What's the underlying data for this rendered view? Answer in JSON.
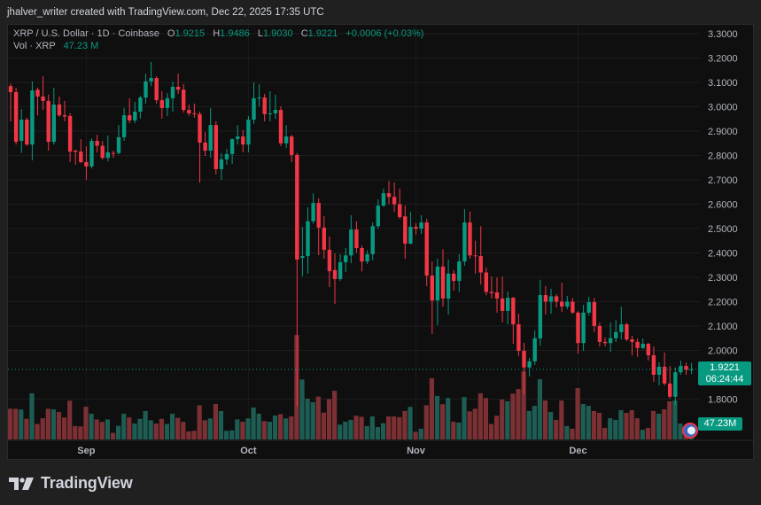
{
  "header": {
    "credit": "jhalver_writer created with TradingView.com, Dec 22, 2025 17:35 UTC"
  },
  "legend": {
    "symbol": "XRP / U.S. Dollar · 1D · Coinbase",
    "o_label": "O",
    "o": "1.9215",
    "h_label": "H",
    "h": "1.9486",
    "l_label": "L",
    "l": "1.9030",
    "c_label": "C",
    "c": "1.9221",
    "change": "+0.0006 (+0.03%)",
    "vol_label": "Vol · XRP",
    "vol": "47.23 M"
  },
  "price_tag": {
    "price": "1.9221",
    "countdown": "06:24:44"
  },
  "volume_tag": "47.23M",
  "logo": {
    "text": "TradingView"
  },
  "colors": {
    "up": "#089981",
    "down": "#f23645",
    "up_volume": "#1d5d53",
    "down_volume": "#7c3034",
    "background": "#0f0f0f"
  },
  "chart_data": {
    "type": "candlestick",
    "title": "",
    "x_ticks": [
      {
        "label": "Sep",
        "date": "Sep 1"
      },
      {
        "label": "Oct",
        "date": "Oct 1"
      },
      {
        "label": "Nov",
        "date": "Nov 1"
      },
      {
        "label": "Dec",
        "date": "Dec 1"
      }
    ],
    "y_ticks": [
      "3.3000",
      "3.2000",
      "3.1000",
      "3.0000",
      "2.9000",
      "2.8000",
      "2.7000",
      "2.6000",
      "2.5000",
      "2.4000",
      "2.3000",
      "2.2000",
      "2.1000",
      "2.0000",
      "1.8000"
    ],
    "ylim": [
      1.8,
      3.3
    ],
    "last_price": 1.9221,
    "grid": true,
    "columns": [
      "date",
      "open",
      "high",
      "low",
      "close",
      "volume_M"
    ],
    "candles": [
      [
        "Aug 18",
        3.085,
        3.096,
        2.94,
        3.06,
        149
      ],
      [
        "Aug 19",
        3.06,
        3.078,
        2.845,
        2.856,
        149
      ],
      [
        "Aug 20",
        2.86,
        2.99,
        2.81,
        2.947,
        145
      ],
      [
        "Aug 21",
        2.947,
        2.955,
        2.84,
        2.845,
        100
      ],
      [
        "Aug 22",
        2.845,
        3.104,
        2.78,
        3.067,
        224
      ],
      [
        "Aug 23",
        3.07,
        3.078,
        2.965,
        3.042,
        75
      ],
      [
        "Aug 24",
        3.042,
        3.125,
        2.987,
        3.024,
        103
      ],
      [
        "Aug 25",
        3.024,
        3.05,
        2.82,
        2.856,
        149
      ],
      [
        "Aug 26",
        2.856,
        3.078,
        2.845,
        3.009,
        146
      ],
      [
        "Aug 27",
        3.009,
        3.042,
        2.958,
        2.965,
        133
      ],
      [
        "Aug 28",
        2.965,
        3.024,
        2.94,
        2.96,
        106
      ],
      [
        "Aug 29",
        2.962,
        2.973,
        2.773,
        2.816,
        188
      ],
      [
        "Aug 30",
        2.82,
        2.824,
        2.762,
        2.815,
        65
      ],
      [
        "Aug 31",
        2.816,
        2.867,
        2.769,
        2.773,
        63
      ],
      [
        "Sep 1",
        2.773,
        2.838,
        2.7,
        2.755,
        159
      ],
      [
        "Sep 2",
        2.755,
        2.87,
        2.747,
        2.86,
        125
      ],
      [
        "Sep 3",
        2.86,
        2.885,
        2.813,
        2.84,
        97
      ],
      [
        "Sep 4",
        2.84,
        2.86,
        2.784,
        2.79,
        85
      ],
      [
        "Sep 5",
        2.79,
        2.882,
        2.776,
        2.813,
        97
      ],
      [
        "Sep 6",
        2.81,
        2.82,
        2.79,
        2.807,
        32
      ],
      [
        "Sep 7",
        2.81,
        2.925,
        2.805,
        2.875,
        66
      ],
      [
        "Sep 8",
        2.875,
        2.995,
        2.86,
        2.965,
        125
      ],
      [
        "Sep 9",
        2.965,
        3.035,
        2.933,
        2.944,
        107
      ],
      [
        "Sep 10",
        2.944,
        3.02,
        2.933,
        2.98,
        77
      ],
      [
        "Sep 11",
        2.98,
        3.045,
        2.951,
        3.038,
        100
      ],
      [
        "Sep 12",
        3.038,
        3.136,
        3.013,
        3.104,
        138
      ],
      [
        "Sep 13",
        3.104,
        3.184,
        3.085,
        3.118,
        93
      ],
      [
        "Sep 14",
        3.118,
        3.125,
        3.013,
        3.027,
        77
      ],
      [
        "Sep 15",
        3.027,
        3.064,
        2.951,
        2.995,
        100
      ],
      [
        "Sep 16",
        2.995,
        3.056,
        2.962,
        3.035,
        75
      ],
      [
        "Sep 17",
        3.035,
        3.104,
        2.98,
        3.082,
        125
      ],
      [
        "Sep 18",
        3.082,
        3.136,
        3.053,
        3.07,
        105
      ],
      [
        "Sep 19",
        3.07,
        3.093,
        2.976,
        2.987,
        85
      ],
      [
        "Sep 20",
        2.987,
        3.009,
        2.962,
        2.973,
        39
      ],
      [
        "Sep 21",
        2.973,
        3.013,
        2.955,
        2.97,
        42
      ],
      [
        "Sep 22",
        2.97,
        2.98,
        2.689,
        2.853,
        165
      ],
      [
        "Sep 23",
        2.853,
        2.896,
        2.798,
        2.82,
        93
      ],
      [
        "Sep 24",
        2.82,
        2.995,
        2.791,
        2.925,
        102
      ],
      [
        "Sep 25",
        2.925,
        2.94,
        2.722,
        2.744,
        172
      ],
      [
        "Sep 26",
        2.744,
        2.809,
        2.7,
        2.784,
        138
      ],
      [
        "Sep 27",
        2.784,
        2.827,
        2.762,
        2.806,
        42
      ],
      [
        "Sep 28",
        2.806,
        2.87,
        2.765,
        2.867,
        44
      ],
      [
        "Sep 29",
        2.867,
        2.925,
        2.845,
        2.878,
        97
      ],
      [
        "Sep 30",
        2.878,
        2.904,
        2.813,
        2.845,
        86
      ],
      [
        "Oct 1",
        2.845,
        2.962,
        2.813,
        2.947,
        102
      ],
      [
        "Oct 2",
        2.947,
        3.1,
        2.93,
        3.035,
        155
      ],
      [
        "Oct 3",
        3.035,
        3.093,
        3.002,
        3.038,
        125
      ],
      [
        "Oct 4",
        3.038,
        3.053,
        2.94,
        2.97,
        89
      ],
      [
        "Oct 5",
        2.97,
        3.064,
        2.94,
        2.973,
        86
      ],
      [
        "Oct 6",
        2.973,
        3.049,
        2.95,
        2.987,
        116
      ],
      [
        "Oct 7",
        2.987,
        3.002,
        2.838,
        2.85,
        123
      ],
      [
        "Oct 8",
        2.85,
        2.925,
        2.83,
        2.878,
        102
      ],
      [
        "Oct 9",
        2.878,
        2.885,
        2.773,
        2.802,
        112
      ],
      [
        "Oct 10",
        2.802,
        2.81,
        1.77,
        2.373,
        507
      ],
      [
        "Oct 11",
        2.38,
        2.507,
        2.304,
        2.387,
        291
      ],
      [
        "Oct 12",
        2.387,
        2.587,
        2.315,
        2.53,
        198
      ],
      [
        "Oct 13",
        2.53,
        2.645,
        2.52,
        2.605,
        181
      ],
      [
        "Oct 14",
        2.605,
        2.624,
        2.391,
        2.504,
        208
      ],
      [
        "Oct 15",
        2.504,
        2.551,
        2.376,
        2.413,
        130
      ],
      [
        "Oct 16",
        2.413,
        2.467,
        2.26,
        2.325,
        196
      ],
      [
        "Oct 17",
        2.33,
        2.398,
        2.191,
        2.293,
        236
      ],
      [
        "Oct 18",
        2.293,
        2.395,
        2.285,
        2.362,
        72
      ],
      [
        "Oct 19",
        2.362,
        2.42,
        2.322,
        2.39,
        86
      ],
      [
        "Oct 20",
        2.39,
        2.555,
        2.358,
        2.496,
        95
      ],
      [
        "Oct 21",
        2.496,
        2.53,
        2.4,
        2.42,
        115
      ],
      [
        "Oct 22",
        2.42,
        2.43,
        2.324,
        2.365,
        110
      ],
      [
        "Oct 23",
        2.365,
        2.41,
        2.355,
        2.395,
        65
      ],
      [
        "Oct 24",
        2.395,
        2.525,
        2.37,
        2.51,
        112
      ],
      [
        "Oct 25",
        2.51,
        2.62,
        2.5,
        2.594,
        60
      ],
      [
        "Oct 26",
        2.594,
        2.664,
        2.59,
        2.645,
        79
      ],
      [
        "Oct 27",
        2.645,
        2.696,
        2.6,
        2.63,
        112
      ],
      [
        "Oct 28",
        2.63,
        2.689,
        2.569,
        2.6,
        112
      ],
      [
        "Oct 29",
        2.6,
        2.664,
        2.54,
        2.547,
        108
      ],
      [
        "Oct 30",
        2.55,
        2.594,
        2.376,
        2.438,
        138
      ],
      [
        "Oct 31",
        2.438,
        2.569,
        2.435,
        2.507,
        158
      ],
      [
        "Nov 1",
        2.507,
        2.522,
        2.475,
        2.5,
        37
      ],
      [
        "Nov 2",
        2.5,
        2.555,
        2.478,
        2.525,
        52
      ],
      [
        "Nov 3",
        2.525,
        2.54,
        2.264,
        2.307,
        166
      ],
      [
        "Nov 4",
        2.307,
        2.365,
        2.067,
        2.205,
        297
      ],
      [
        "Nov 5",
        2.205,
        2.376,
        2.104,
        2.344,
        211
      ],
      [
        "Nov 6",
        2.344,
        2.415,
        2.18,
        2.213,
        171
      ],
      [
        "Nov 7",
        2.213,
        2.373,
        2.147,
        2.315,
        201
      ],
      [
        "Nov 8",
        2.315,
        2.33,
        2.245,
        2.285,
        86
      ],
      [
        "Nov 9",
        2.285,
        2.395,
        2.24,
        2.365,
        82
      ],
      [
        "Nov 10",
        2.365,
        2.58,
        2.347,
        2.525,
        206
      ],
      [
        "Nov 11",
        2.525,
        2.57,
        2.376,
        2.39,
        136
      ],
      [
        "Nov 12",
        2.39,
        2.45,
        2.315,
        2.387,
        149
      ],
      [
        "Nov 13",
        2.387,
        2.51,
        2.27,
        2.32,
        224
      ],
      [
        "Nov 14",
        2.32,
        2.34,
        2.227,
        2.24,
        201
      ],
      [
        "Nov 15",
        2.24,
        2.304,
        2.213,
        2.235,
        75
      ],
      [
        "Nov 16",
        2.238,
        2.3,
        2.155,
        2.213,
        115
      ],
      [
        "Nov 17",
        2.213,
        2.304,
        2.115,
        2.162,
        194
      ],
      [
        "Nov 18",
        2.162,
        2.242,
        2.107,
        2.216,
        185
      ],
      [
        "Nov 19",
        2.216,
        2.22,
        2.027,
        2.107,
        222
      ],
      [
        "Nov 20",
        2.107,
        2.151,
        1.976,
        1.998,
        245
      ],
      [
        "Nov 21",
        1.998,
        2.031,
        1.82,
        1.93,
        330
      ],
      [
        "Nov 22",
        1.93,
        1.969,
        1.893,
        1.955,
        138
      ],
      [
        "Nov 23",
        1.955,
        2.082,
        1.94,
        2.05,
        163
      ],
      [
        "Nov 24",
        2.049,
        2.29,
        2.02,
        2.227,
        292
      ],
      [
        "Nov 25",
        2.227,
        2.264,
        2.147,
        2.2,
        189
      ],
      [
        "Nov 26",
        2.2,
        2.253,
        2.15,
        2.222,
        133
      ],
      [
        "Nov 27",
        2.222,
        2.231,
        2.176,
        2.2,
        95
      ],
      [
        "Nov 28",
        2.2,
        2.278,
        2.158,
        2.18,
        189
      ],
      [
        "Nov 29",
        2.18,
        2.224,
        2.169,
        2.2,
        65
      ],
      [
        "Nov 30",
        2.2,
        2.215,
        2.15,
        2.155,
        52
      ],
      [
        "Dec 1",
        2.155,
        2.16,
        1.987,
        2.03,
        249
      ],
      [
        "Dec 2",
        2.03,
        2.187,
        1.998,
        2.155,
        172
      ],
      [
        "Dec 3",
        2.155,
        2.22,
        2.144,
        2.198,
        163
      ],
      [
        "Dec 4",
        2.198,
        2.215,
        2.075,
        2.1,
        138
      ],
      [
        "Dec 5",
        2.1,
        2.114,
        2.016,
        2.035,
        129
      ],
      [
        "Dec 6",
        2.035,
        2.053,
        2.016,
        2.03,
        56
      ],
      [
        "Dec 7",
        2.03,
        2.114,
        1.994,
        2.05,
        103
      ],
      [
        "Dec 8",
        2.05,
        2.125,
        2.035,
        2.075,
        95
      ],
      [
        "Dec 9",
        2.075,
        2.18,
        2.045,
        2.107,
        142
      ],
      [
        "Dec 10",
        2.107,
        2.114,
        2.038,
        2.045,
        129
      ],
      [
        "Dec 11",
        2.045,
        2.06,
        1.98,
        2.035,
        142
      ],
      [
        "Dec 12",
        2.035,
        2.049,
        1.973,
        2.01,
        103
      ],
      [
        "Dec 13",
        2.01,
        2.049,
        2.005,
        2.027,
        47
      ],
      [
        "Dec 14",
        2.027,
        2.031,
        1.958,
        1.98,
        56
      ],
      [
        "Dec 15",
        1.98,
        2.016,
        1.871,
        1.9,
        138
      ],
      [
        "Dec 16",
        1.9,
        1.951,
        1.856,
        1.933,
        125
      ],
      [
        "Dec 17",
        1.933,
        1.991,
        1.856,
        1.864,
        146
      ],
      [
        "Dec 18",
        1.864,
        1.936,
        1.802,
        1.81,
        185
      ],
      [
        "Dec 19",
        1.81,
        1.93,
        1.776,
        1.91,
        189
      ],
      [
        "Dec 20",
        1.91,
        1.958,
        1.9,
        1.936,
        77
      ],
      [
        "Dec 21",
        1.936,
        1.95,
        1.9,
        1.92,
        40
      ],
      [
        "Dec 22",
        1.9215,
        1.9486,
        1.903,
        1.9221,
        47.23
      ]
    ]
  }
}
